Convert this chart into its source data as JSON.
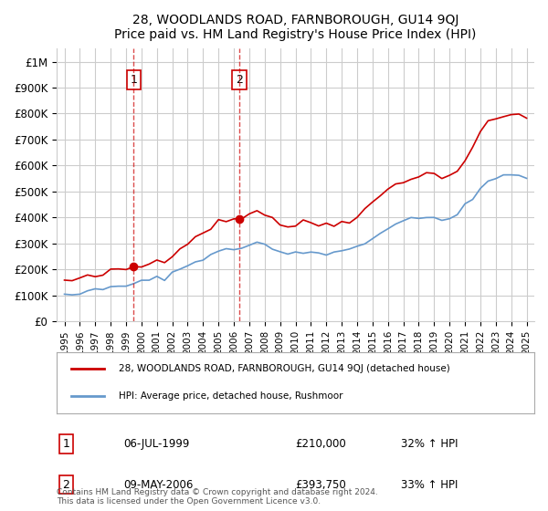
{
  "title": "28, WOODLANDS ROAD, FARNBOROUGH, GU14 9QJ",
  "subtitle": "Price paid vs. HM Land Registry's House Price Index (HPI)",
  "legend_line1": "28, WOODLANDS ROAD, FARNBOROUGH, GU14 9QJ (detached house)",
  "legend_line2": "HPI: Average price, detached house, Rushmoor",
  "footnote": "Contains HM Land Registry data © Crown copyright and database right 2024.\nThis data is licensed under the Open Government Licence v3.0.",
  "sale1_label": "1",
  "sale1_date": "06-JUL-1999",
  "sale1_price": "£210,000",
  "sale1_hpi": "32% ↑ HPI",
  "sale1_year": 1999.5,
  "sale2_label": "2",
  "sale2_date": "09-MAY-2006",
  "sale2_price": "£393,750",
  "sale2_hpi": "33% ↑ HPI",
  "sale2_year": 2006.36,
  "red_line_color": "#cc0000",
  "blue_line_color": "#6699cc",
  "marker_color": "#cc0000",
  "vline_color": "#cc0000",
  "background_color": "#ffffff",
  "grid_color": "#cccccc",
  "ylim": [
    0,
    1050000
  ],
  "xlim": [
    1994.5,
    2025.5
  ],
  "ylabel_ticks": [
    0,
    100000,
    200000,
    300000,
    400000,
    500000,
    600000,
    700000,
    800000,
    900000,
    1000000
  ],
  "ylabel_labels": [
    "£0",
    "£100K",
    "£200K",
    "£300K",
    "£400K",
    "£500K",
    "£600K",
    "£700K",
    "£800K",
    "£900K",
    "£1M"
  ],
  "xtick_years": [
    1995,
    1996,
    1997,
    1998,
    1999,
    2000,
    2001,
    2002,
    2003,
    2004,
    2005,
    2006,
    2007,
    2008,
    2009,
    2010,
    2011,
    2012,
    2013,
    2014,
    2015,
    2016,
    2017,
    2018,
    2019,
    2020,
    2021,
    2022,
    2023,
    2024,
    2025
  ]
}
